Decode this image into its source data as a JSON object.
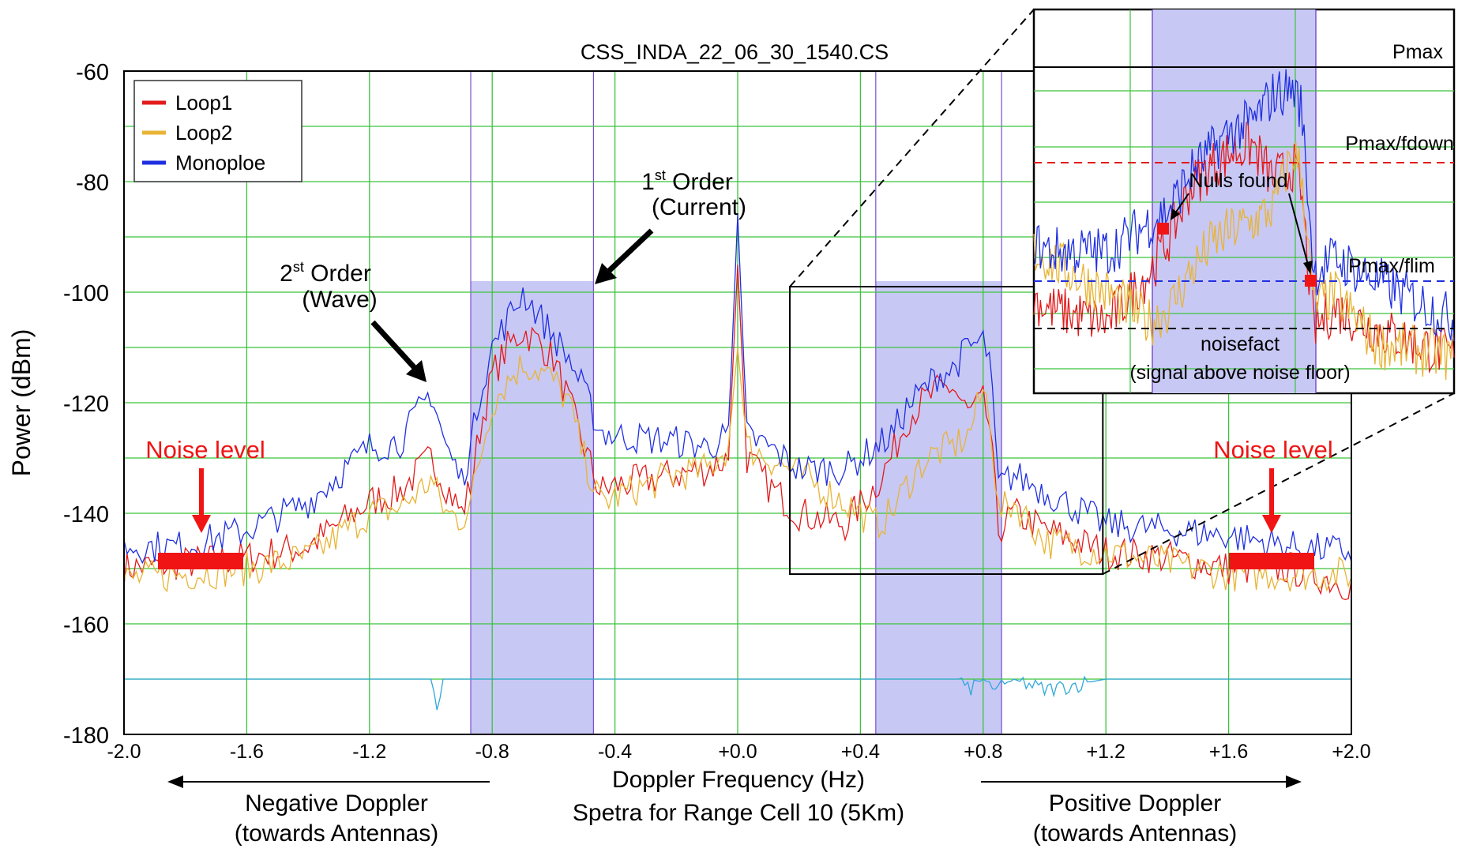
{
  "chart_data": {
    "type": "line",
    "title": "CSS_INDA_22_06_30_1540.CS",
    "xlabel": "Doppler Frequency (Hz)",
    "subtitle": "Spetra for Range Cell 10 (5Km)",
    "ylabel": "Power (dBm)",
    "xlim": [
      -2.0,
      2.0
    ],
    "ylim": [
      -180,
      -60
    ],
    "xticks": [
      "-2.0",
      "-1.6",
      "-1.2",
      "-0.8",
      "-0.4",
      "+0.0",
      "+0.4",
      "+0.8",
      "+1.2",
      "+1.6",
      "+2.0"
    ],
    "yticks": [
      "-60",
      "-80",
      "-100",
      "-120",
      "-140",
      "-160",
      "-180"
    ],
    "grid": true,
    "legend_position": "top-left",
    "series": [
      {
        "name": "Loop1",
        "color": "#e21b1b",
        "x": [
          -2.0,
          -1.8,
          -1.6,
          -1.4,
          -1.2,
          -1.1,
          -1.0,
          -0.95,
          -0.9,
          -0.87,
          -0.84,
          -0.8,
          -0.75,
          -0.7,
          -0.65,
          -0.6,
          -0.55,
          -0.5,
          -0.45,
          -0.4,
          -0.2,
          -0.1,
          -0.03,
          0.0,
          0.03,
          0.1,
          0.2,
          0.35,
          0.45,
          0.5,
          0.55,
          0.6,
          0.65,
          0.7,
          0.75,
          0.8,
          0.82,
          0.85,
          0.9,
          1.0,
          1.2,
          1.4,
          1.6,
          1.8,
          2.0
        ],
        "y": [
          -150,
          -149,
          -148,
          -146,
          -138,
          -136,
          -130,
          -135,
          -140,
          -135,
          -125,
          -115,
          -110,
          -107,
          -109,
          -112,
          -120,
          -128,
          -136,
          -135,
          -133,
          -132,
          -130,
          -95,
          -130,
          -135,
          -140,
          -142,
          -135,
          -130,
          -123,
          -120,
          -118,
          -117,
          -122,
          -120,
          -124,
          -143,
          -140,
          -143,
          -147,
          -148,
          -150,
          -150,
          -153
        ]
      },
      {
        "name": "Loop2",
        "color": "#e8b436",
        "x": [
          -2.0,
          -1.8,
          -1.6,
          -1.4,
          -1.2,
          -1.1,
          -1.0,
          -0.95,
          -0.9,
          -0.87,
          -0.84,
          -0.8,
          -0.75,
          -0.7,
          -0.65,
          -0.6,
          -0.55,
          -0.5,
          -0.45,
          -0.4,
          -0.2,
          -0.1,
          -0.03,
          0.0,
          0.03,
          0.1,
          0.2,
          0.35,
          0.45,
          0.5,
          0.55,
          0.6,
          0.65,
          0.7,
          0.75,
          0.8,
          0.82,
          0.85,
          0.9,
          1.0,
          1.2,
          1.4,
          1.6,
          1.8,
          2.0
        ],
        "y": [
          -152,
          -151,
          -150,
          -148,
          -140,
          -139,
          -134,
          -140,
          -141,
          -138,
          -130,
          -120,
          -116,
          -113,
          -114,
          -116,
          -120,
          -130,
          -138,
          -137,
          -133,
          -132,
          -128,
          -110,
          -128,
          -130,
          -133,
          -138,
          -142,
          -140,
          -135,
          -131,
          -129,
          -128,
          -126,
          -118,
          -121,
          -140,
          -138,
          -145,
          -147,
          -149,
          -151,
          -151,
          -151
        ]
      },
      {
        "name": "Monoploe",
        "color": "#1f2fe0",
        "x": [
          -2.0,
          -1.8,
          -1.6,
          -1.4,
          -1.2,
          -1.1,
          -1.0,
          -0.95,
          -0.9,
          -0.87,
          -0.84,
          -0.8,
          -0.75,
          -0.7,
          -0.65,
          -0.6,
          -0.55,
          -0.5,
          -0.45,
          -0.4,
          -0.2,
          -0.1,
          -0.03,
          0.0,
          0.03,
          0.1,
          0.2,
          0.35,
          0.45,
          0.5,
          0.55,
          0.6,
          0.65,
          0.7,
          0.75,
          0.8,
          0.82,
          0.85,
          0.9,
          1.0,
          1.2,
          1.4,
          1.6,
          1.8,
          2.0
        ],
        "y": [
          -146,
          -146,
          -143,
          -138,
          -128,
          -127,
          -118,
          -128,
          -134,
          -128,
          -118,
          -110,
          -105,
          -100,
          -104,
          -108,
          -112,
          -118,
          -125,
          -126,
          -127,
          -128,
          -126,
          -86,
          -126,
          -128,
          -132,
          -132,
          -128,
          -126,
          -121,
          -118,
          -115,
          -114,
          -110,
          -109,
          -112,
          -135,
          -133,
          -136,
          -142,
          -143,
          -144,
          -146,
          -147
        ]
      },
      {
        "name": "",
        "color": "#2fa8d8",
        "x": [
          -2.0,
          -1.8,
          -1.6,
          -1.4,
          -1.2,
          -1.0,
          -0.98,
          -0.96,
          -0.8,
          -0.4,
          0.0,
          0.4,
          0.72,
          0.75,
          0.8,
          0.85,
          0.9,
          1.0,
          1.2,
          1.4,
          1.6,
          1.8,
          2.0
        ],
        "y": [
          -170,
          -170,
          -170,
          -170,
          -170,
          -170,
          -176,
          -170,
          -170,
          -170,
          -170,
          -170,
          -170,
          -172,
          -170,
          -172,
          -170,
          -172,
          -170,
          -170,
          -170,
          -170,
          -170
        ]
      }
    ],
    "shaded_regions": [
      [
        -0.87,
        -0.47
      ],
      [
        0.45,
        0.86
      ]
    ],
    "zoom_box": {
      "x": [
        0.17,
        1.19
      ],
      "y": [
        -151,
        -99
      ]
    },
    "annotations": {
      "first_order": [
        "1",
        "st",
        " Order",
        "(Current)"
      ],
      "second_order": [
        "2",
        "st",
        " Order",
        "(Wave)"
      ],
      "noise_left": "Noise level",
      "noise_right": "Noise level",
      "negative_doppler": [
        "Negative Doppler",
        "(towards Antennas)"
      ],
      "positive_doppler": [
        "Positive Doppler",
        "(towards Antennas)"
      ]
    },
    "inset": {
      "labels": {
        "pmax": "Pmax",
        "pmax_fdown": "Pmax/fdown",
        "nulls_found": "Nulls found",
        "pmax_flim": "Pmax/flim",
        "noisefact": "noisefact",
        "noisefact_note": "(signal above noise floor)"
      },
      "line_colors": {
        "pmax_fdown": "#e21b1b",
        "pmax_flim": "#1f2fe0",
        "noisefact": "#000000"
      }
    }
  },
  "colors": {
    "grid": "#3bc43b",
    "shade": "#c8c8f5",
    "shade_edge": "#7a4fd0",
    "annotation_red": "#f01414"
  }
}
